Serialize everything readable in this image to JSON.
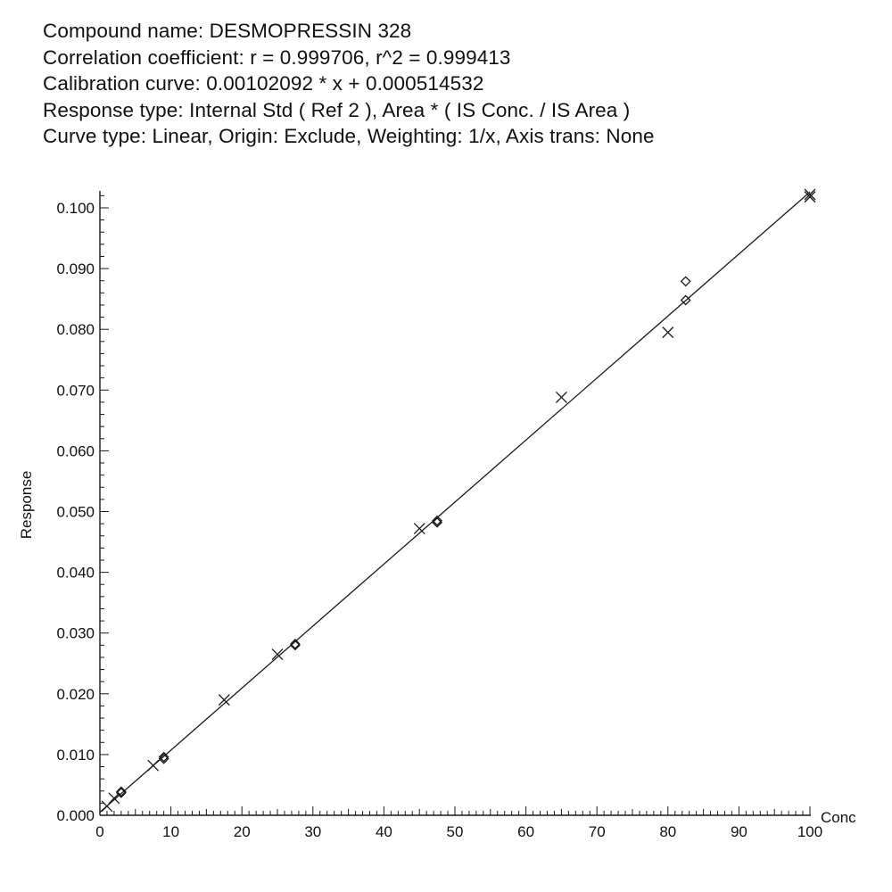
{
  "header": {
    "compound_line": "Compound name: DESMOPRESSIN 328",
    "correlation_line": "Correlation coefficient: r = 0.999706, r^2 = 0.999413",
    "calibration_line": "Calibration curve: 0.00102092 * x + 0.000514532",
    "response_type_line": "Response type: Internal Std ( Ref 2 ), Area * ( IS Conc. / IS Area )",
    "curve_type_line": "Curve type: Linear, Origin: Exclude, Weighting: 1/x, Axis trans: None"
  },
  "chart_data": {
    "type": "scatter",
    "title": "",
    "xlabel": "Conc",
    "ylabel": "Response",
    "xlim": [
      0,
      100
    ],
    "ylim": [
      0,
      0.1025
    ],
    "x_ticks": [
      "0",
      "10",
      "20",
      "30",
      "40",
      "50",
      "60",
      "70",
      "80",
      "90",
      "100"
    ],
    "y_ticks": [
      "0.000",
      "0.010",
      "0.020",
      "0.030",
      "0.040",
      "0.050",
      "0.060",
      "0.070",
      "0.080",
      "0.090",
      "0.100"
    ],
    "grid": false,
    "fit_line": {
      "slope": 0.00102092,
      "intercept": 0.000514532
    },
    "series": [
      {
        "marker": "cross",
        "x": [
          1,
          2,
          7.5,
          17.5,
          25,
          45,
          65,
          80,
          100,
          100
        ],
        "y": [
          0.0015,
          0.0028,
          0.0082,
          0.019,
          0.0265,
          0.0472,
          0.0688,
          0.0795,
          0.1018,
          0.1022
        ]
      },
      {
        "marker": "diamond",
        "x": [
          3,
          3,
          9,
          9,
          27.5,
          27.5,
          47.5,
          47.5,
          82.5,
          82.5
        ],
        "y": [
          0.0037,
          0.0039,
          0.0093,
          0.0096,
          0.028,
          0.0282,
          0.0482,
          0.0485,
          0.0848,
          0.0879
        ]
      }
    ]
  }
}
